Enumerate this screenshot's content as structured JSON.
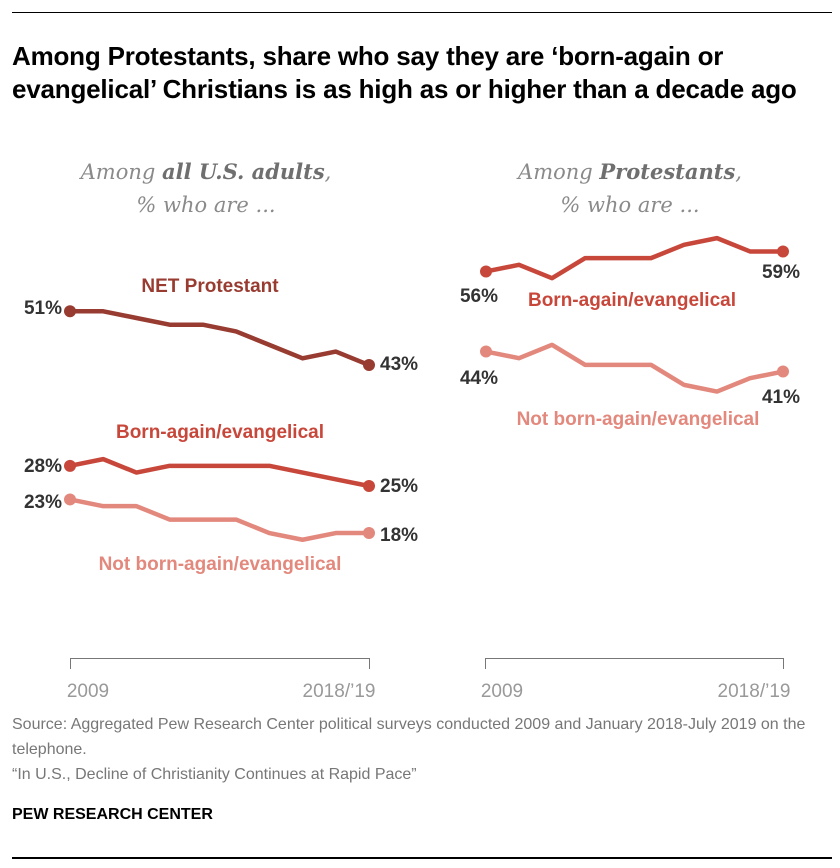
{
  "title": "Among Protestants, share who say they are ‘born-again or evangelical’ Christians is as high as or higher than a decade ago",
  "chart_data": [
    {
      "type": "line",
      "subtitle_prefix": "Among ",
      "subtitle_emph": "all U.S. adults",
      "subtitle_suffix": ",",
      "subtitle_line2": "% who are ...",
      "x_start_label": "2009",
      "x_end_label": "2018/’19",
      "series": [
        {
          "name": "NET Protestant",
          "color": "#983b30",
          "values": [
            51,
            51,
            50,
            49,
            49,
            48,
            46,
            44,
            45,
            43
          ],
          "start_label": "51%",
          "end_label": "43%"
        },
        {
          "name": "Born-again/evangelical",
          "color": "#c8473b",
          "values": [
            28,
            29,
            27,
            28,
            28,
            28,
            28,
            27,
            26,
            25
          ],
          "start_label": "28%",
          "end_label": "25%"
        },
        {
          "name": "Not born-again/evangelical",
          "color": "#e3887d",
          "values": [
            23,
            22,
            22,
            20,
            20,
            20,
            18,
            17,
            18,
            18
          ],
          "start_label": "23%",
          "end_label": "18%"
        }
      ]
    },
    {
      "type": "line",
      "subtitle_prefix": "Among ",
      "subtitle_emph": "Protestants",
      "subtitle_suffix": ",",
      "subtitle_line2": "% who are ...",
      "x_start_label": "2009",
      "x_end_label": "2018/’19",
      "series": [
        {
          "name": "Born-again/evangelical",
          "color": "#c8473b",
          "values": [
            56,
            57,
            55,
            58,
            58,
            58,
            60,
            61,
            59,
            59
          ],
          "start_label": "56%",
          "end_label": "59%"
        },
        {
          "name": "Not born-again/evangelical",
          "color": "#e3887d",
          "values": [
            44,
            43,
            45,
            42,
            42,
            42,
            39,
            38,
            40,
            41
          ],
          "start_label": "44%",
          "end_label": "41%"
        }
      ]
    }
  ],
  "source": "Source: Aggregated Pew Research Center political surveys conducted 2009 and January 2018-July 2019 on the telephone.",
  "report": "“In U.S., Decline of Christianity Continues at Rapid Pace”",
  "brand": "PEW RESEARCH CENTER"
}
